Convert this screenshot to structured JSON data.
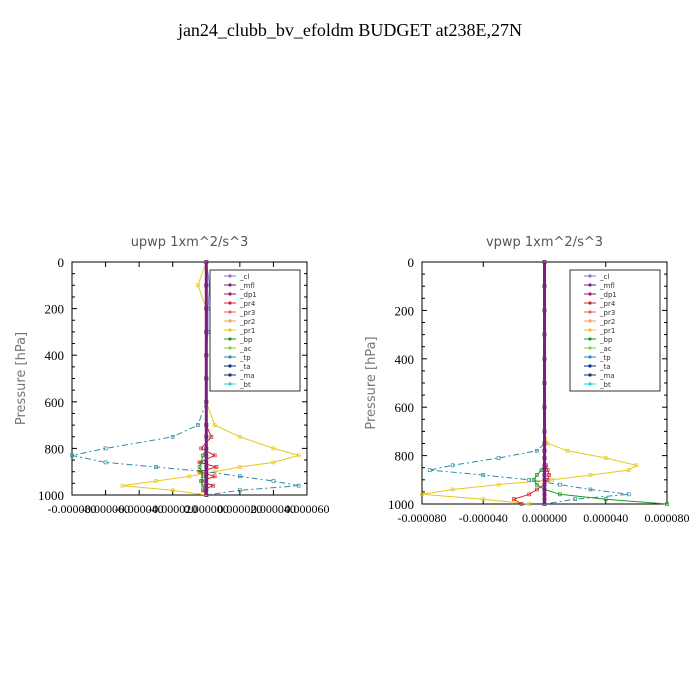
{
  "title": "jan24_clubb_bv_efoldm  BUDGET at238E,27N",
  "legend_entries": [
    {
      "label": "_cl",
      "color": "#8a6fd9"
    },
    {
      "label": "_mfl",
      "color": "#7a1f7a"
    },
    {
      "label": "_dp1",
      "color": "#a0146e"
    },
    {
      "label": "_pr4",
      "color": "#d0202e"
    },
    {
      "label": "_pr3",
      "color": "#f0605a"
    },
    {
      "label": "_pr2",
      "color": "#f2a25a"
    },
    {
      "label": "_pr1",
      "color": "#e8c81e"
    },
    {
      "label": "_bp",
      "color": "#1f9a1f"
    },
    {
      "label": "_ac",
      "color": "#7fd23a"
    },
    {
      "label": "_tp",
      "color": "#2a8aa8"
    },
    {
      "label": "_ta",
      "color": "#1a2a8a"
    },
    {
      "label": "_ma",
      "color": "#2a2a6a"
    },
    {
      "label": "_bt",
      "color": "#1fd8e8"
    }
  ],
  "chart_data": [
    {
      "type": "line",
      "title": "upwp   1xm^2/s^3",
      "ylabel": "Pressure [hPa]",
      "xlabel": "",
      "ylim": [
        1000,
        0
      ],
      "xlim": [
        -8e-05,
        6e-05
      ],
      "yticks": [
        0,
        200,
        400,
        600,
        800,
        1000
      ],
      "xticks": [
        -8e-05,
        -6e-05,
        -4e-05,
        -2e-05,
        0.0,
        2e-05,
        4e-05,
        6e-05
      ],
      "xtick_labels": [
        "-0.000080",
        "-0.000060",
        "-0.000040",
        "-0.000020",
        "0.000000",
        "0.000020",
        "0.000040",
        "0.000060"
      ],
      "legend": "top-right",
      "y": [
        0,
        100,
        200,
        300,
        400,
        500,
        600,
        700,
        750,
        800,
        830,
        860,
        880,
        900,
        920,
        940,
        960,
        980,
        1000
      ],
      "series": [
        {
          "name": "_pr1",
          "values": [
            0,
            -5e-06,
            0,
            0,
            0,
            0,
            0,
            5e-06,
            2e-05,
            4e-05,
            5.5e-05,
            4e-05,
            2e-05,
            5e-06,
            -1e-05,
            -3e-05,
            -5e-05,
            -2e-05,
            0
          ]
        },
        {
          "name": "_tp",
          "values": [
            0,
            0,
            0,
            0,
            0,
            0,
            0,
            -5e-06,
            -2e-05,
            -6e-05,
            -8e-05,
            -6e-05,
            -3e-05,
            0,
            2e-05,
            4e-05,
            5.5e-05,
            2e-05,
            0
          ]
        },
        {
          "name": "_pr4",
          "values": [
            0,
            0,
            0,
            0,
            0,
            0,
            0,
            0,
            3e-06,
            -3e-06,
            5e-06,
            -4e-06,
            6e-06,
            -4e-06,
            5e-06,
            -3e-06,
            4e-06,
            -2e-06,
            0
          ]
        },
        {
          "name": "_bp",
          "values": [
            0,
            0,
            0,
            0,
            0,
            0,
            0,
            0,
            0,
            0,
            -2e-06,
            -3e-06,
            -4e-06,
            -3e-06,
            -2e-06,
            -3e-06,
            -2e-06,
            -1e-06,
            0
          ]
        },
        {
          "name": "_cl",
          "values": [
            0,
            2e-06,
            1e-06,
            1e-06,
            0,
            0,
            0,
            0,
            0,
            0,
            0,
            0,
            0,
            0,
            0,
            0,
            0,
            0,
            0
          ]
        },
        {
          "name": "_mfl",
          "values": [
            0,
            0,
            0,
            0,
            0,
            0,
            0,
            0,
            0,
            0,
            0,
            0,
            0,
            0,
            0,
            0,
            0,
            0,
            0
          ]
        }
      ]
    },
    {
      "type": "line",
      "title": "vpwp   1xm^2/s^3",
      "ylabel": "Pressure [hPa]",
      "xlabel": "",
      "ylim": [
        1000,
        0
      ],
      "xlim": [
        -8e-05,
        8e-05
      ],
      "yticks": [
        0,
        200,
        400,
        600,
        800,
        1000
      ],
      "xticks": [
        -8e-05,
        -4e-05,
        0.0,
        4e-05,
        8e-05
      ],
      "xtick_labels": [
        "-0.000080",
        "-0.000040",
        "0.000000",
        "0.000040",
        "0.000080"
      ],
      "legend": "top-right",
      "y": [
        0,
        100,
        200,
        300,
        400,
        500,
        600,
        700,
        750,
        780,
        810,
        840,
        860,
        880,
        900,
        920,
        940,
        960,
        980,
        1000
      ],
      "series": [
        {
          "name": "_pr1",
          "values": [
            0,
            0,
            0,
            0,
            0,
            0,
            0,
            0,
            2e-06,
            1.5e-05,
            4e-05,
            6e-05,
            5.5e-05,
            3e-05,
            5e-06,
            -3e-05,
            -6e-05,
            -8e-05,
            -4e-05,
            -1e-05
          ]
        },
        {
          "name": "_tp",
          "values": [
            0,
            0,
            0,
            0,
            0,
            0,
            0,
            0,
            0,
            -5e-06,
            -3e-05,
            -6e-05,
            -7.5e-05,
            -4e-05,
            -1e-05,
            1e-05,
            3e-05,
            5.5e-05,
            2e-05,
            0
          ]
        },
        {
          "name": "_bp",
          "values": [
            0,
            0,
            0,
            0,
            0,
            0,
            0,
            0,
            0,
            0,
            0,
            0,
            -2e-06,
            -5e-06,
            -7e-06,
            -5e-06,
            0,
            1e-05,
            4e-05,
            8e-05
          ]
        },
        {
          "name": "_pr4",
          "values": [
            0,
            0,
            0,
            0,
            0,
            0,
            0,
            0,
            0,
            0,
            0,
            1e-06,
            2e-06,
            3e-06,
            2e-06,
            0,
            -5e-06,
            -1e-05,
            -2e-05,
            -1.5e-05
          ]
        },
        {
          "name": "_cl",
          "values": [
            0,
            0,
            0,
            0,
            0,
            0,
            0,
            0,
            0,
            0,
            0,
            0,
            0,
            0,
            0,
            0,
            0,
            0,
            0,
            0
          ]
        },
        {
          "name": "_mfl",
          "values": [
            0,
            0,
            0,
            0,
            0,
            0,
            0,
            0,
            0,
            0,
            0,
            0,
            0,
            0,
            0,
            0,
            0,
            0,
            0,
            0
          ]
        }
      ]
    }
  ]
}
